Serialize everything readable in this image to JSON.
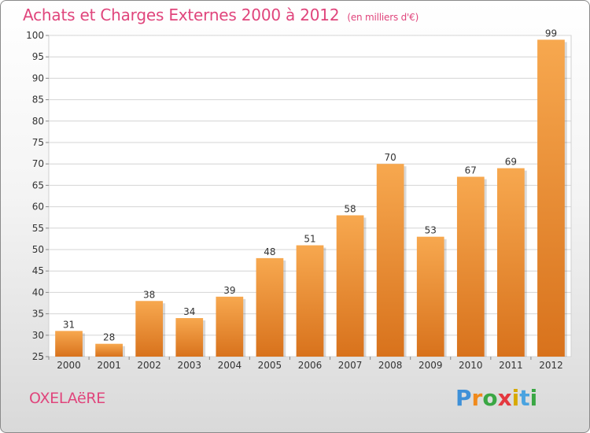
{
  "header": {
    "title": "Achats et Charges Externes 2000 à 2012",
    "unit": "(en milliers d'€)"
  },
  "footer": {
    "place": "OXELAëRE",
    "logo_parts": [
      "P",
      "r",
      "o",
      "x",
      "i",
      "t",
      "i"
    ]
  },
  "colors": {
    "bar_top": "#f7a84f",
    "bar_bottom": "#d8721c",
    "grid": "#d4d4d4",
    "title": "#e0457c"
  },
  "chart_data": {
    "type": "bar",
    "title": "Achats et Charges Externes 2000 à 2012",
    "subtitle": "(en milliers d'€)",
    "categories": [
      "2000",
      "2001",
      "2002",
      "2003",
      "2004",
      "2005",
      "2006",
      "2007",
      "2008",
      "2009",
      "2010",
      "2011",
      "2012"
    ],
    "values": [
      31,
      28,
      38,
      34,
      39,
      48,
      51,
      58,
      70,
      53,
      67,
      69,
      99
    ],
    "ylim": [
      25,
      100
    ],
    "yticks": [
      25,
      30,
      35,
      40,
      45,
      50,
      55,
      60,
      65,
      70,
      75,
      80,
      85,
      90,
      95,
      100
    ],
    "grid": true,
    "xlabel": "",
    "ylabel": ""
  }
}
